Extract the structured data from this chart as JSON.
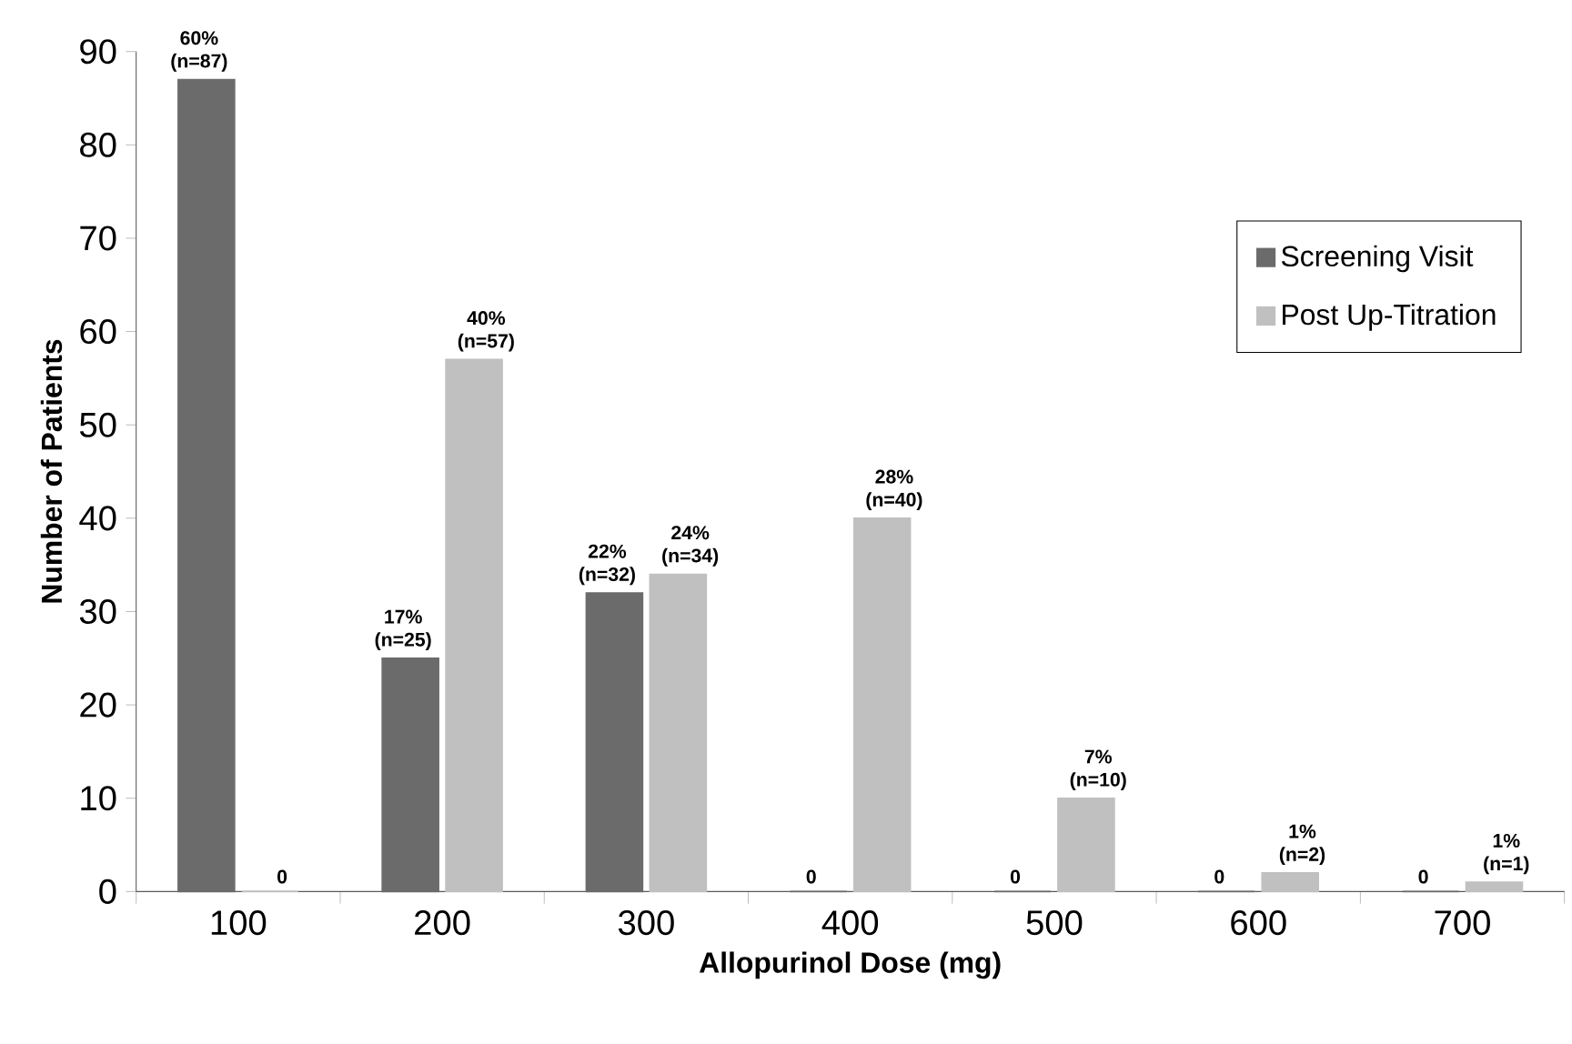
{
  "chart_data": {
    "type": "bar",
    "xlabel": "Allopurinol Dose (mg)",
    "ylabel": "Number of Patients",
    "categories": [
      "100",
      "200",
      "300",
      "400",
      "500",
      "600",
      "700"
    ],
    "series": [
      {
        "name": "Screening Visit",
        "color": "#6b6b6b",
        "values": [
          87,
          25,
          32,
          0,
          0,
          0,
          0
        ],
        "value_labels": [
          "60% (n=87)",
          "17% (n=25)",
          "22% (n=32)",
          "0",
          "0",
          "0",
          "0"
        ]
      },
      {
        "name": "Post Up-Titration",
        "color": "#c0c0c0",
        "values": [
          0,
          57,
          34,
          40,
          10,
          2,
          1
        ],
        "value_labels": [
          "0",
          "40% (n=57)",
          "24% (n=34)",
          "28% (n=40)",
          "7% (n=10)",
          "1% (n=2)",
          "1% (n=1)"
        ]
      }
    ],
    "ylim": [
      0,
      90
    ],
    "yticks": [
      0,
      10,
      20,
      30,
      40,
      50,
      60,
      70,
      80,
      90
    ],
    "grid": false,
    "legend": "right"
  }
}
